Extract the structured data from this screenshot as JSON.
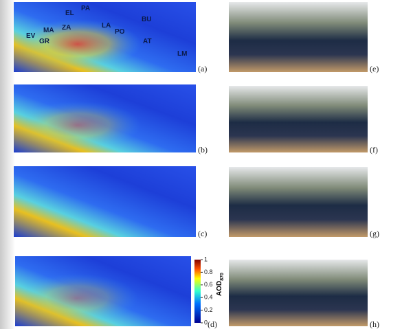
{
  "panels": [
    {
      "label": "(a)"
    },
    {
      "label": "(b)"
    },
    {
      "label": "(c)"
    },
    {
      "label": "(d)"
    },
    {
      "label": "(e)"
    },
    {
      "label": "(f)"
    },
    {
      "label": "(g)"
    },
    {
      "label": "(h)"
    }
  ],
  "stations": [
    {
      "label": "EL"
    },
    {
      "label": "PA"
    },
    {
      "label": "BU"
    },
    {
      "label": "EV"
    },
    {
      "label": "MA"
    },
    {
      "label": "ZA"
    },
    {
      "label": "GR"
    },
    {
      "label": "LA"
    },
    {
      "label": "PO"
    },
    {
      "label": "AT"
    },
    {
      "label": "LM"
    }
  ],
  "colorbar": {
    "title": "AOD",
    "subscript": "870",
    "range": [
      0,
      1
    ],
    "ticks": [
      0,
      0.2,
      0.4,
      0.6,
      0.8,
      1
    ]
  }
}
